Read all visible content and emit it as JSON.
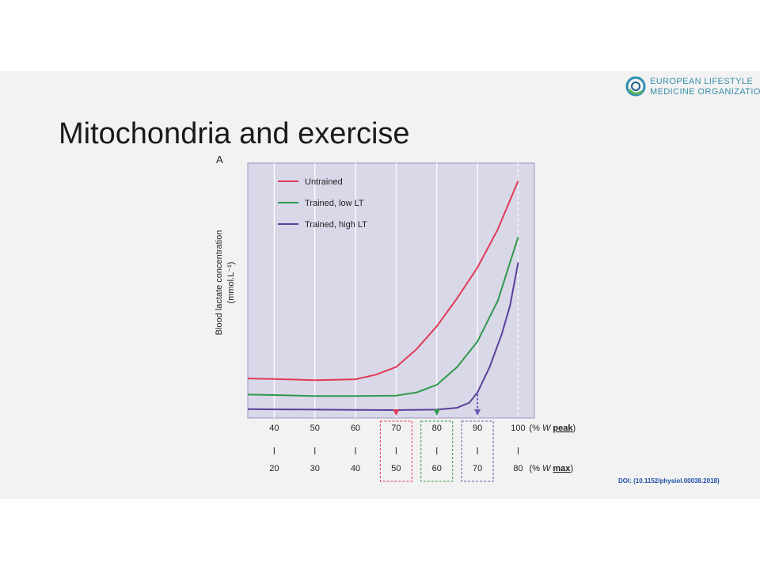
{
  "slide": {
    "title": "Mitochondria and exercise",
    "logo": {
      "line1": "EUROPEAN LIFESTYLE",
      "line2": "MEDICINE ORGANIZATION",
      "colors": [
        "#2e8fb0",
        "#5bb85b",
        "#1f5f8a"
      ]
    },
    "doi": "DOI: (10.1152/physiol.00038.2018)"
  },
  "chart_data": {
    "type": "line",
    "panel_label": "A",
    "ylabel": "Blood lactate concentration\n(mmol.L⁻¹)",
    "xlabel_peak": "(% W peak)",
    "xlabel_max": "(% W max)",
    "x_ticks_peak": [
      40,
      50,
      60,
      70,
      80,
      90,
      100
    ],
    "x_ticks_max": [
      20,
      30,
      40,
      50,
      60,
      70,
      80
    ],
    "xlim": [
      33.5,
      104
    ],
    "ylim": [
      0,
      1
    ],
    "grid": true,
    "legend_position": "top-left",
    "background": "#d9d8e8",
    "series": [
      {
        "name": "Untrained",
        "color": "#e03a57",
        "x": [
          33.5,
          40,
          50,
          60,
          65,
          70,
          75,
          80,
          85,
          90,
          95,
          100
        ],
        "y": [
          0.155,
          0.153,
          0.148,
          0.152,
          0.17,
          0.2,
          0.27,
          0.36,
          0.47,
          0.59,
          0.74,
          0.93
        ]
      },
      {
        "name": "Trained, low LT",
        "color": "#2e9a4a",
        "x": [
          33.5,
          40,
          50,
          60,
          70,
          75,
          80,
          85,
          90,
          95,
          100
        ],
        "y": [
          0.092,
          0.09,
          0.086,
          0.086,
          0.088,
          0.1,
          0.13,
          0.2,
          0.3,
          0.46,
          0.71
        ]
      },
      {
        "name": "Trained, high LT",
        "color": "#5b3f9a",
        "x": [
          33.5,
          40,
          50,
          60,
          70,
          80,
          85,
          88,
          90,
          93,
          96,
          98,
          100
        ],
        "y": [
          0.035,
          0.034,
          0.033,
          0.032,
          0.031,
          0.033,
          0.04,
          0.06,
          0.1,
          0.2,
          0.33,
          0.44,
          0.61
        ]
      }
    ],
    "thresholds": [
      {
        "x": 70,
        "color": "#e03a57",
        "label_peak": "70",
        "label_max": "50"
      },
      {
        "x": 80,
        "color": "#2e9a4a",
        "label_peak": "80",
        "label_max": "60"
      },
      {
        "x": 90,
        "color": "#6a5ab0",
        "label_peak": "90",
        "label_max": "70"
      }
    ]
  }
}
